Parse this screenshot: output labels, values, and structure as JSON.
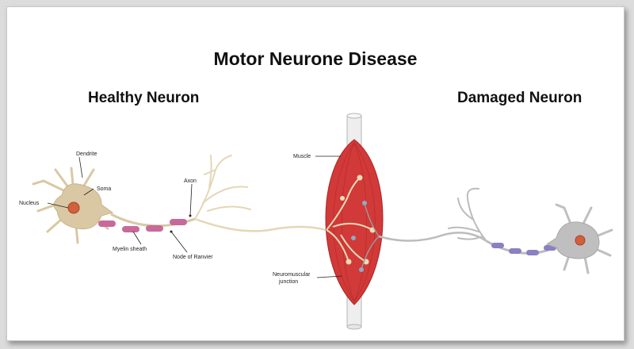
{
  "title": "Motor Neurone Disease",
  "panels": {
    "healthy": "Healthy Neuron",
    "damaged": "Damaged Neuron"
  },
  "labels": {
    "dendrite": "Dendrite",
    "soma": "Soma",
    "nucleus": "Nucleus",
    "axon": "Axon",
    "myelin_sheath": "Myelin sheath",
    "node_of_ranvier": "Node of Ranvier",
    "muscle": "Muscle",
    "nmj_line1": "Neuromuscular",
    "nmj_line2": "junction"
  },
  "colors": {
    "healthy_cell": "#d9c8a3",
    "healthy_myelin": "#c76a9a",
    "damaged_cell": "#bfbfbf",
    "damaged_myelin": "#8d7fc2",
    "muscle": "#d13a38",
    "nucleus": "#d1603d"
  }
}
